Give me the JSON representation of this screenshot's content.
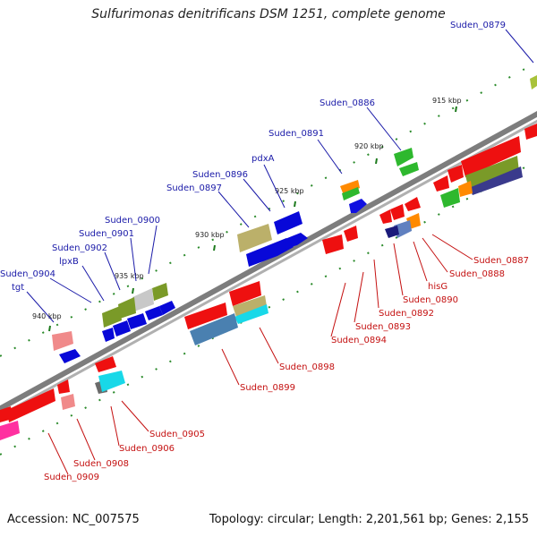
{
  "title": "Sulfurimonas denitrificans DSM 1251, complete genome",
  "accession_label": "Accession: NC_007575",
  "topology_label": "Topology: circular; Length: 2,201,561 bp; Genes: 2,155",
  "colors": {
    "backbone": "#8c8c8c",
    "forward_label": "#1a1aa8",
    "reverse_label": "#c41010",
    "tick": "#2a8a2a"
  },
  "ruler_ticks": [
    "915 kbp",
    "920 kbp",
    "925 kbp",
    "930 kbp",
    "935 kbp",
    "940 kbp"
  ],
  "forward_labels": [
    "Suden_0879",
    "Suden_0886",
    "Suden_0891",
    "pdxA",
    "Suden_0896",
    "Suden_0897",
    "Suden_0900",
    "Suden_0901",
    "Suden_0902",
    "lpxB",
    "Suden_0904",
    "tgt"
  ],
  "reverse_labels": [
    "Suden_0887",
    "Suden_0888",
    "hisG",
    "Suden_0890",
    "Suden_0892",
    "Suden_0893",
    "Suden_0894",
    "Suden_0898",
    "Suden_0899",
    "Suden_0905",
    "Suden_0906",
    "Suden_0908",
    "Suden_0909"
  ]
}
